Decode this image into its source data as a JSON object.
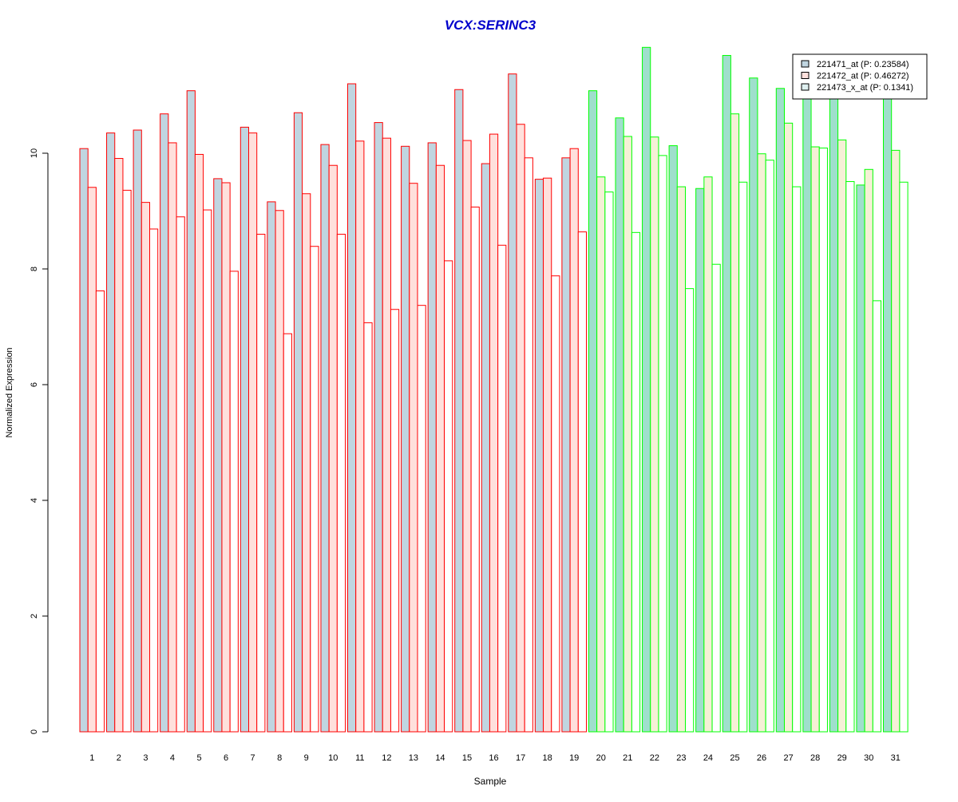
{
  "chart_data": {
    "type": "bar",
    "title": "VCX:SERINC3",
    "xlabel": "Sample",
    "ylabel": "Normalized Expression",
    "ylim": [
      0,
      11.83
    ],
    "yticks": [
      0,
      2,
      4,
      6,
      8,
      10
    ],
    "grid": false,
    "legend_position": "top-right",
    "categories": [
      "1",
      "2",
      "3",
      "4",
      "5",
      "6",
      "7",
      "8",
      "9",
      "10",
      "11",
      "12",
      "13",
      "14",
      "15",
      "16",
      "17",
      "18",
      "19",
      "20",
      "21",
      "22",
      "23",
      "24",
      "25",
      "26",
      "27",
      "28",
      "29",
      "30",
      "31"
    ],
    "series": [
      {
        "name": "221471_at (P: 0.23584)",
        "values": [
          10.08,
          10.35,
          10.4,
          10.68,
          11.08,
          9.56,
          10.45,
          9.16,
          10.7,
          10.15,
          11.2,
          10.53,
          10.12,
          10.18,
          11.1,
          9.82,
          11.37,
          9.55,
          9.92,
          11.08,
          10.61,
          11.83,
          10.13,
          9.39,
          11.69,
          11.3,
          11.12,
          11.0,
          10.95,
          9.45,
          11.05
        ]
      },
      {
        "name": "221472_at (P: 0.46272)",
        "values": [
          9.41,
          9.91,
          9.15,
          10.18,
          9.98,
          9.49,
          10.35,
          9.01,
          9.3,
          9.79,
          10.21,
          10.26,
          9.48,
          9.79,
          10.22,
          10.33,
          10.5,
          9.57,
          10.08,
          9.59,
          10.29,
          10.28,
          9.42,
          9.59,
          10.68,
          9.99,
          10.52,
          10.11,
          10.23,
          9.72,
          10.05
        ]
      },
      {
        "name": "221473_x_at (P: 0.1341)",
        "values": [
          7.62,
          9.36,
          8.69,
          8.9,
          9.02,
          7.96,
          8.6,
          6.88,
          8.39,
          8.6,
          7.07,
          7.3,
          7.37,
          8.14,
          9.07,
          8.41,
          9.92,
          7.88,
          8.64,
          9.33,
          8.63,
          9.96,
          7.66,
          8.08,
          9.5,
          9.88,
          9.42,
          10.09,
          9.51,
          7.45,
          9.5
        ]
      }
    ],
    "group_colors": {
      "group1": {
        "samples": [
          1,
          19
        ],
        "border": "#ff0000",
        "fills": [
          "#c0d5e0",
          "#ffe0dc",
          "#ffffff"
        ]
      },
      "group2": {
        "samples": [
          20,
          31
        ],
        "border": "#00ff00",
        "fills": [
          "#9fdfcc",
          "#f5f0d6",
          "#ffffff"
        ]
      }
    },
    "legend_swatch_fills": [
      "#c0d5e0",
      "#ffe0dc",
      "#dff0f0"
    ],
    "title_color": "#0000cc"
  }
}
